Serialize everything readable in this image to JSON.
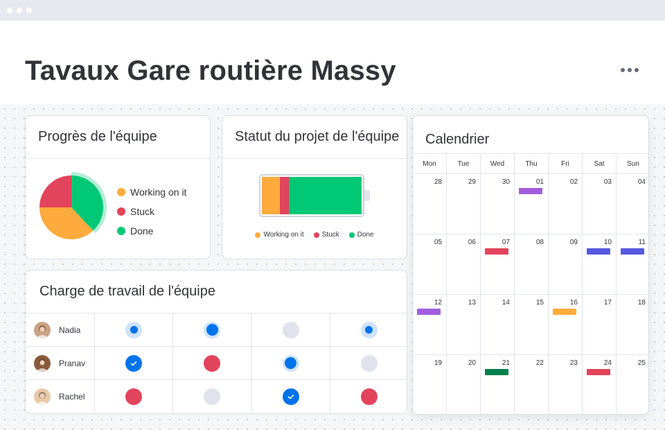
{
  "board": {
    "title": "Tavaux Gare routière Massy"
  },
  "colors": {
    "working": "#fdab3d",
    "stuck": "#e2445c",
    "done": "#00c875",
    "primary": "#0073ea"
  },
  "progress_widget": {
    "title": "Progrès de l'équipe",
    "legend": [
      {
        "label": "Working on it",
        "color": "#fdab3d"
      },
      {
        "label": "Stuck",
        "color": "#e2445c"
      },
      {
        "label": "Done",
        "color": "#00c875"
      }
    ],
    "chart_data": {
      "type": "pie",
      "slices": [
        {
          "name": "Done",
          "value": 38,
          "color": "#00c875"
        },
        {
          "name": "Working on it",
          "value": 37,
          "color": "#fdab3d"
        },
        {
          "name": "Stuck",
          "value": 25,
          "color": "#e2445c"
        }
      ]
    }
  },
  "status_widget": {
    "title": "Statut du projet de l'équipe",
    "legend": [
      {
        "label": "Working on it",
        "color": "#fdab3d"
      },
      {
        "label": "Stuck",
        "color": "#e2445c"
      },
      {
        "label": "Done",
        "color": "#00c875"
      }
    ],
    "battery": [
      {
        "name": "Working on it",
        "value": 18,
        "color": "#fdab3d"
      },
      {
        "name": "Stuck",
        "value": 9,
        "color": "#e2445c"
      },
      {
        "name": "Done",
        "value": 73,
        "color": "#00c875"
      }
    ]
  },
  "calendar_widget": {
    "title": "Calendrier",
    "weekdays": [
      "Mon",
      "Tue",
      "Wed",
      "Thu",
      "Fri",
      "Sat",
      "Sun"
    ],
    "weeks": [
      [
        {
          "day": "28"
        },
        {
          "day": "29"
        },
        {
          "day": "30"
        },
        {
          "day": "01",
          "event": "#a25ddc"
        },
        {
          "day": "02"
        },
        {
          "day": "03"
        },
        {
          "day": "04"
        }
      ],
      [
        {
          "day": "05"
        },
        {
          "day": "06"
        },
        {
          "day": "07",
          "event": "#e2445c"
        },
        {
          "day": "08"
        },
        {
          "day": "09"
        },
        {
          "day": "10",
          "event": "#5559df"
        },
        {
          "day": "11",
          "event": "#5559df"
        }
      ],
      [
        {
          "day": "12",
          "event": "#a25ddc"
        },
        {
          "day": "13"
        },
        {
          "day": "14"
        },
        {
          "day": "15"
        },
        {
          "day": "16",
          "event": "#fdab3d"
        },
        {
          "day": "17"
        },
        {
          "day": "18"
        }
      ],
      [
        {
          "day": "19"
        },
        {
          "day": "20"
        },
        {
          "day": "21",
          "event": "#037f4c"
        },
        {
          "day": "22"
        },
        {
          "day": "23"
        },
        {
          "day": "24",
          "event": "#e2445c"
        },
        {
          "day": "25"
        }
      ]
    ]
  },
  "workload_widget": {
    "title": "Charge de travail de l'équipe",
    "rows": [
      {
        "name": "Nadia",
        "avatar_color": "#c9a384",
        "cells": [
          "ring",
          "ringbig",
          "empty",
          "ring"
        ]
      },
      {
        "name": "Pranav",
        "avatar_color": "#8a5a3c",
        "cells": [
          "done",
          "stuck",
          "ringbig",
          "empty"
        ]
      },
      {
        "name": "Rachel",
        "avatar_color": "#e7c9a9",
        "cells": [
          "stuck",
          "empty",
          "done",
          "stuck"
        ]
      }
    ]
  }
}
